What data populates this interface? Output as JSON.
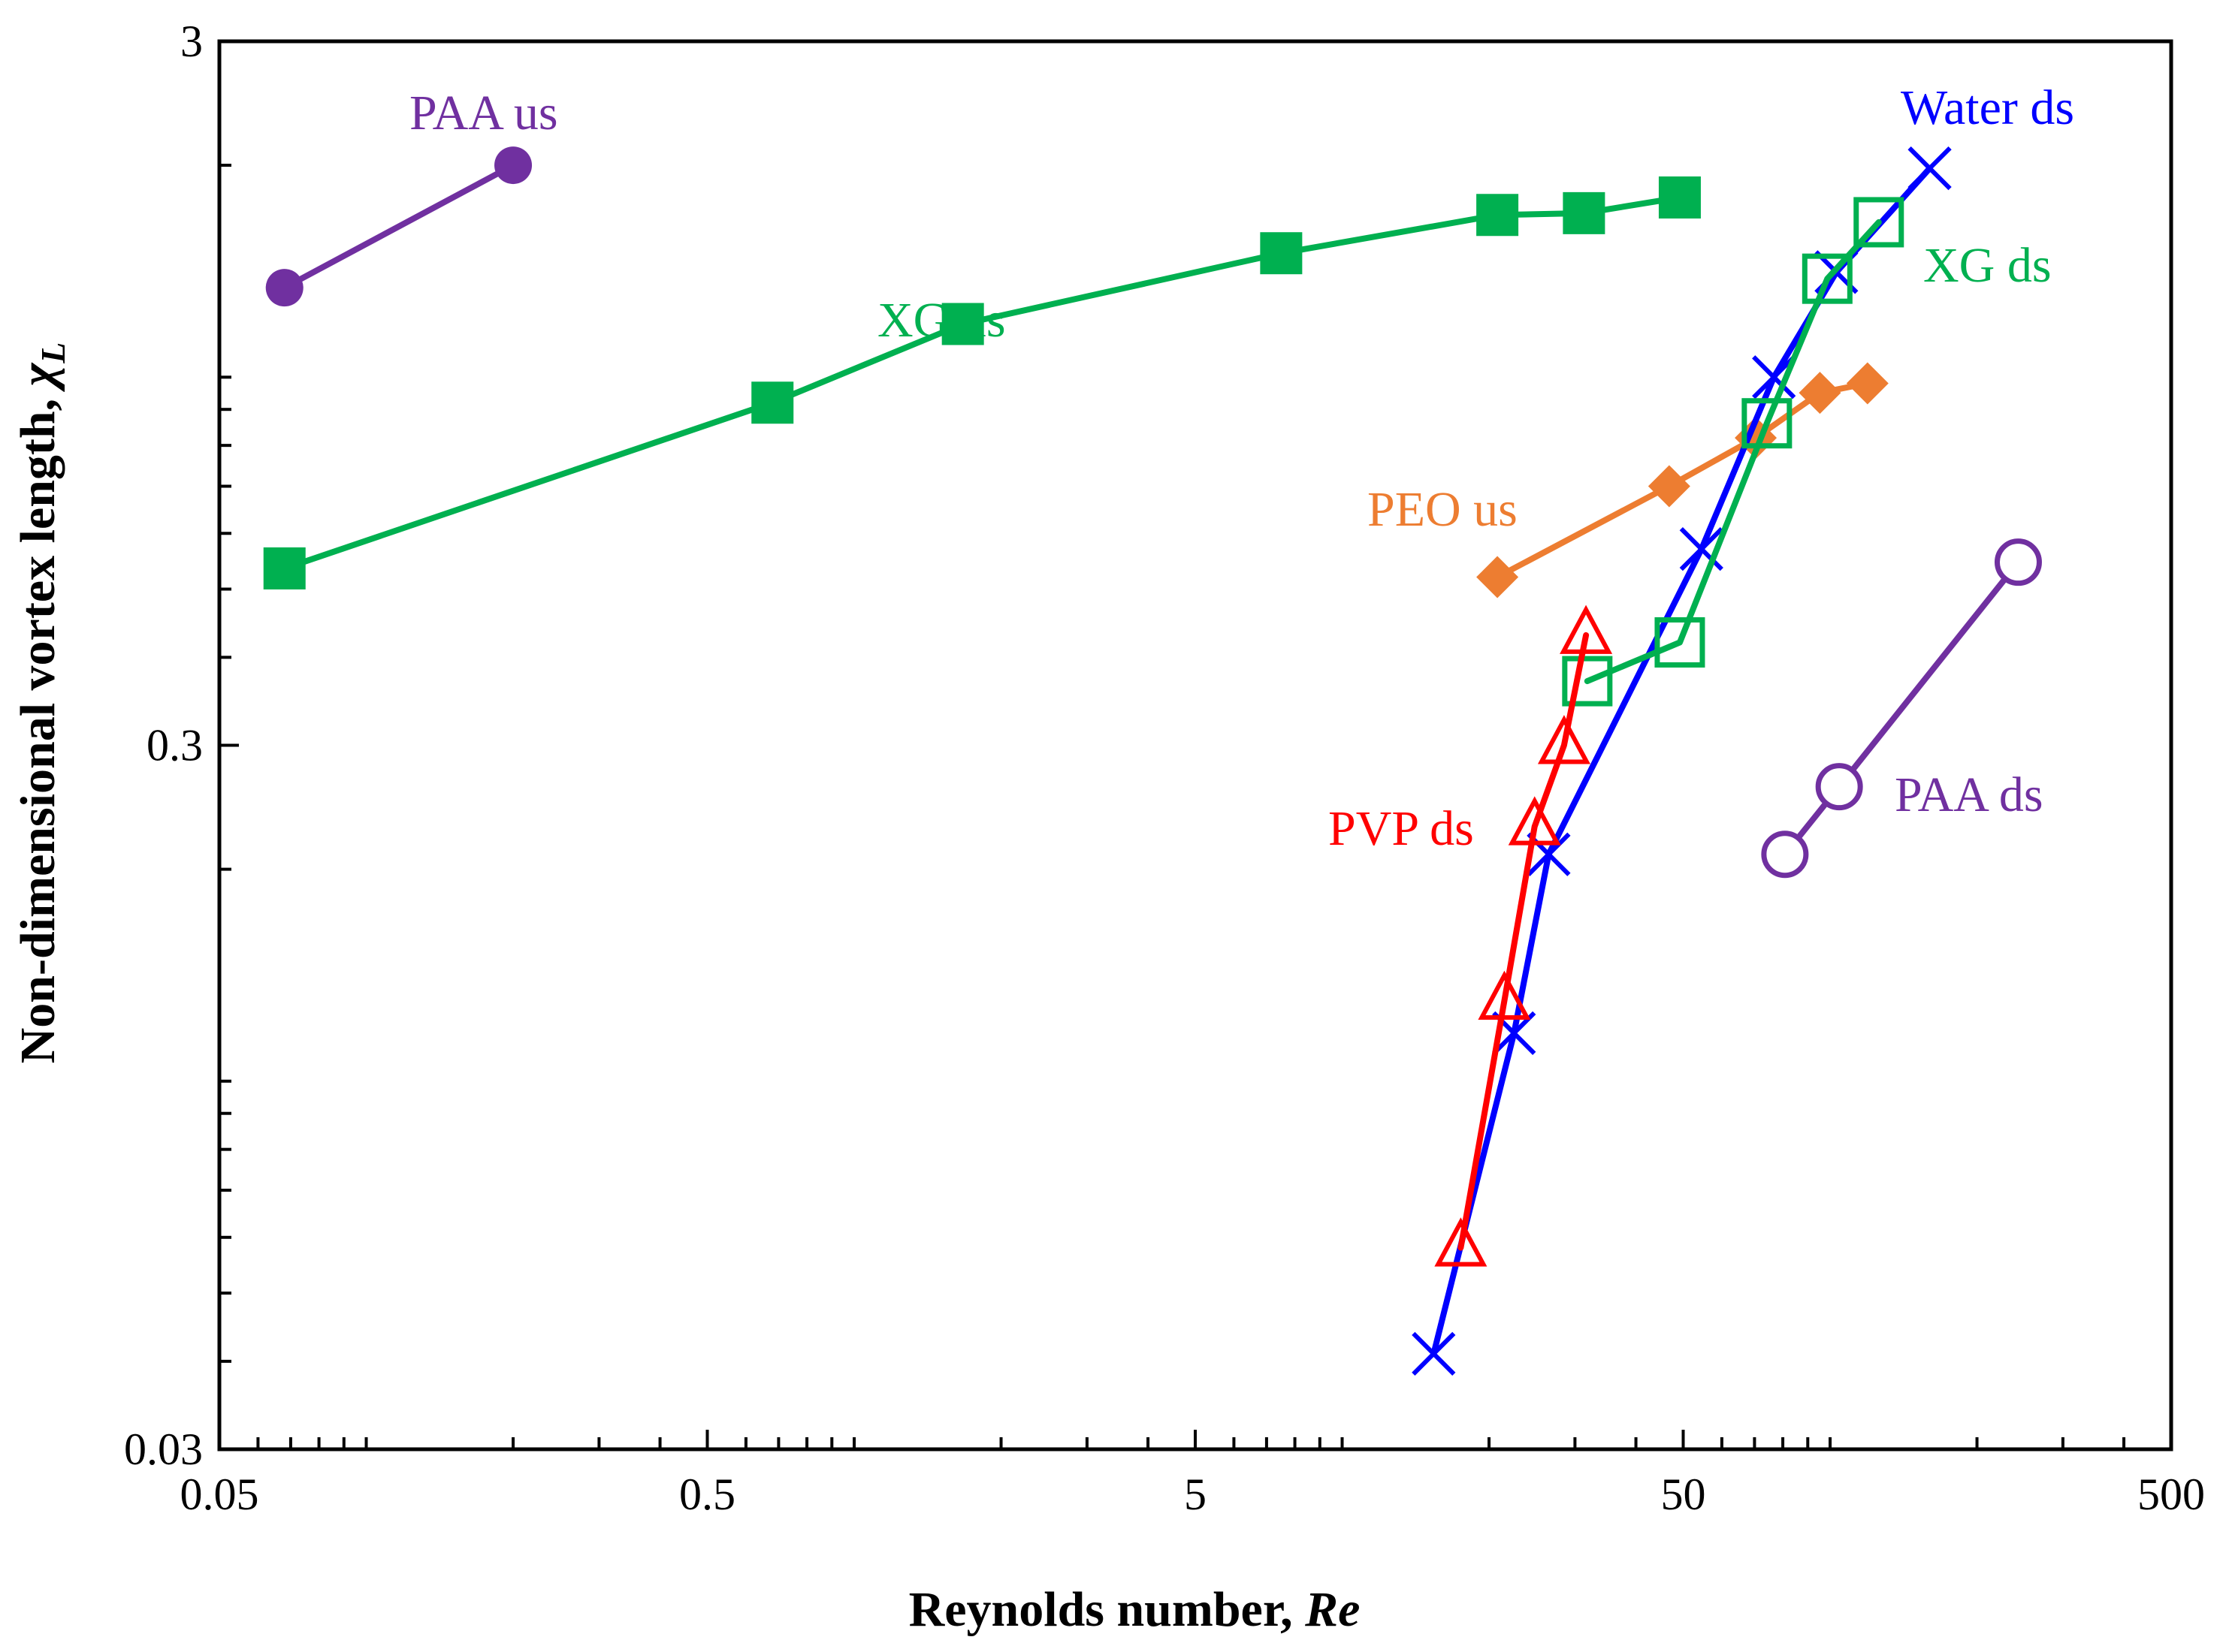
{
  "chart_data": {
    "type": "scatter",
    "title": "",
    "xlabel": "Reynolds number, ",
    "xlabel_italic": "Re",
    "ylabel": "Non-dimensional vortex length, ",
    "ylabel_symbol": "χ",
    "ylabel_subscript": "L",
    "x_scale": "log",
    "y_scale": "log",
    "xlim": [
      0.05,
      500
    ],
    "ylim": [
      0.03,
      3
    ],
    "x_ticks": [
      {
        "value": 0.05,
        "label": "0.05"
      },
      {
        "value": 0.5,
        "label": "0.5"
      },
      {
        "value": 5,
        "label": "5"
      },
      {
        "value": 50,
        "label": "50"
      },
      {
        "value": 500,
        "label": "500"
      }
    ],
    "y_ticks": [
      {
        "value": 0.03,
        "label": "0.03"
      },
      {
        "value": 0.3,
        "label": "0.3"
      },
      {
        "value": 3,
        "label": "3"
      }
    ],
    "grid": false,
    "legend": "inline labels",
    "series": [
      {
        "name": "PAA us",
        "color": "#7030a0",
        "marker": "filled-circle",
        "x": [
          0.068,
          0.2
        ],
        "y": [
          1.34,
          2.0
        ]
      },
      {
        "name": "XG us",
        "color": "#00b050",
        "marker": "filled-square",
        "x": [
          0.068,
          0.68,
          1.67,
          7.5,
          20.8,
          31.3,
          49.2
        ],
        "y": [
          0.535,
          0.92,
          1.19,
          1.5,
          1.7,
          1.71,
          1.8
        ]
      },
      {
        "name": "PEO us",
        "color": "#ed7d31",
        "marker": "filled-diamond",
        "x": [
          20.8,
          46.8,
          70.4,
          95.3,
          119.3
        ],
        "y": [
          0.52,
          0.7,
          0.82,
          0.95,
          0.98
        ]
      },
      {
        "name": "Water ds",
        "color": "#0000ff",
        "marker": "x",
        "x": [
          15.4,
          22.5,
          26.5,
          54.5,
          76.7,
          103,
          160
        ],
        "y": [
          0.041,
          0.117,
          0.21,
          0.57,
          1.0,
          1.41,
          1.98
        ]
      },
      {
        "name": "XG ds",
        "color": "#00b050",
        "marker": "open-square",
        "x": [
          31.8,
          49.2,
          74.2,
          98.7,
          125.8
        ],
        "y": [
          0.37,
          0.42,
          0.86,
          1.38,
          1.66
        ]
      },
      {
        "name": "PVP ds",
        "color": "#ff0000",
        "marker": "open-triangle",
        "x": [
          17.5,
          21.5,
          24.8,
          28.5,
          31.6
        ],
        "y": [
          0.058,
          0.13,
          0.23,
          0.3,
          0.43
        ]
      },
      {
        "name": "PAA ds",
        "color": "#7030a0",
        "marker": "open-circle",
        "x": [
          80.8,
          104.4,
          243
        ],
        "y": [
          0.21,
          0.262,
          0.546
        ]
      }
    ],
    "annotations": [
      {
        "text": "PAA us",
        "color": "#7030a0"
      },
      {
        "text": "XG us",
        "color": "#00b050"
      },
      {
        "text": "PEO us",
        "color": "#ed7d31"
      },
      {
        "text": "Water ds",
        "color": "#0000ff"
      },
      {
        "text": "XG ds",
        "color": "#00b050"
      },
      {
        "text": "PVP ds",
        "color": "#ff0000"
      },
      {
        "text": "PAA ds",
        "color": "#7030a0"
      }
    ]
  }
}
